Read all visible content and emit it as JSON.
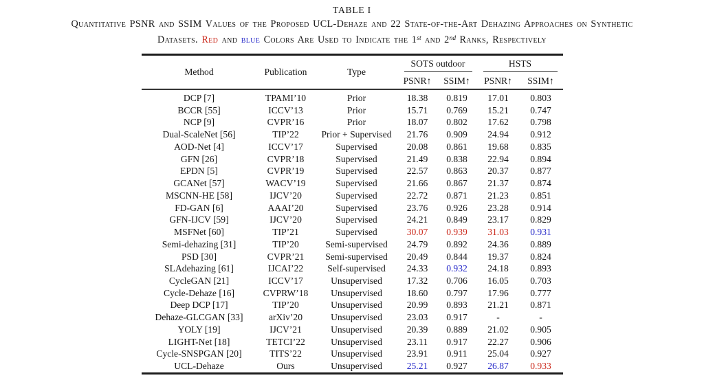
{
  "colors": {
    "rank1": "#cb2a1d",
    "rank2": "#2629c9",
    "text": "#161616",
    "background": "#ffffff"
  },
  "title": "TABLE I",
  "caption": {
    "line1": "Quantitative PSNR and SSIM Values of the Proposed UCL-Dehaze and 22 State-of-the-Art Dehazing Approaches on Synthetic",
    "line2_parts": {
      "pre": "Datasets. ",
      "red_word": "Red",
      "mid1": " and ",
      "blue_word": "blue",
      "mid2": " Colors Are Used to Indicate the 1",
      "sup1": "st",
      "mid3": " and 2",
      "sup2": "nd",
      "post": " Ranks, Respectively"
    }
  },
  "table": {
    "header": {
      "method": "Method",
      "publication": "Publication",
      "type": "Type",
      "group1": "SOTS outdoor",
      "group2": "HSTS",
      "sub": [
        "PSNR↑",
        "SSIM↑",
        "PSNR↑",
        "SSIM↑"
      ]
    },
    "rows": [
      {
        "method": "DCP [7]",
        "publication": "TPAMI’10",
        "type": "Prior",
        "values": [
          {
            "v": "18.38"
          },
          {
            "v": "0.819"
          },
          {
            "v": "17.01"
          },
          {
            "v": "0.803"
          }
        ]
      },
      {
        "method": "BCCR [55]",
        "publication": "ICCV’13",
        "type": "Prior",
        "values": [
          {
            "v": "15.71"
          },
          {
            "v": "0.769"
          },
          {
            "v": "15.21"
          },
          {
            "v": "0.747"
          }
        ]
      },
      {
        "method": "NCP [9]",
        "publication": "CVPR’16",
        "type": "Prior",
        "values": [
          {
            "v": "18.07"
          },
          {
            "v": "0.802"
          },
          {
            "v": "17.62"
          },
          {
            "v": "0.798"
          }
        ]
      },
      {
        "method": "Dual-ScaleNet [56]",
        "publication": "TIP’22",
        "type": "Prior + Supervised",
        "values": [
          {
            "v": "21.76"
          },
          {
            "v": "0.909"
          },
          {
            "v": "24.94"
          },
          {
            "v": "0.912"
          }
        ]
      },
      {
        "method": "AOD-Net [4]",
        "publication": "ICCV’17",
        "type": "Supervised",
        "values": [
          {
            "v": "20.08"
          },
          {
            "v": "0.861"
          },
          {
            "v": "19.68"
          },
          {
            "v": "0.835"
          }
        ]
      },
      {
        "method": "GFN [26]",
        "publication": "CVPR’18",
        "type": "Supervised",
        "values": [
          {
            "v": "21.49"
          },
          {
            "v": "0.838"
          },
          {
            "v": "22.94"
          },
          {
            "v": "0.894"
          }
        ]
      },
      {
        "method": "EPDN [5]",
        "publication": "CVPR’19",
        "type": "Supervised",
        "values": [
          {
            "v": "22.57"
          },
          {
            "v": "0.863"
          },
          {
            "v": "20.37"
          },
          {
            "v": "0.877"
          }
        ]
      },
      {
        "method": "GCANet [57]",
        "publication": "WACV’19",
        "type": "Supervised",
        "values": [
          {
            "v": "21.66"
          },
          {
            "v": "0.867"
          },
          {
            "v": "21.37"
          },
          {
            "v": "0.874"
          }
        ]
      },
      {
        "method": "MSCNN-HE [58]",
        "publication": "IJCV’20",
        "type": "Supervised",
        "values": [
          {
            "v": "22.72"
          },
          {
            "v": "0.871"
          },
          {
            "v": "21.23"
          },
          {
            "v": "0.851"
          }
        ]
      },
      {
        "method": "FD-GAN [6]",
        "publication": "AAAI’20",
        "type": "Supervised",
        "values": [
          {
            "v": "23.76"
          },
          {
            "v": "0.926"
          },
          {
            "v": "23.28"
          },
          {
            "v": "0.914"
          }
        ]
      },
      {
        "method": "GFN-IJCV [59]",
        "publication": "IJCV’20",
        "type": "Supervised",
        "values": [
          {
            "v": "24.21"
          },
          {
            "v": "0.849"
          },
          {
            "v": "23.17"
          },
          {
            "v": "0.829"
          }
        ]
      },
      {
        "method": "MSFNet [60]",
        "publication": "TIP’21",
        "type": "Supervised",
        "values": [
          {
            "v": "30.07",
            "c": "rank1"
          },
          {
            "v": "0.939",
            "c": "rank1"
          },
          {
            "v": "31.03",
            "c": "rank1"
          },
          {
            "v": "0.931",
            "c": "rank2"
          }
        ]
      },
      {
        "method": "Semi-dehazing [31]",
        "publication": "TIP’20",
        "type": "Semi-supervised",
        "values": [
          {
            "v": "24.79"
          },
          {
            "v": "0.892"
          },
          {
            "v": "24.36"
          },
          {
            "v": "0.889"
          }
        ]
      },
      {
        "method": "PSD [30]",
        "publication": "CVPR’21",
        "type": "Semi-supervised",
        "values": [
          {
            "v": "20.49"
          },
          {
            "v": "0.844"
          },
          {
            "v": "19.37"
          },
          {
            "v": "0.824"
          }
        ]
      },
      {
        "method": "SLAdehazing [61]",
        "publication": "IJCAI’22",
        "type": "Self-supervised",
        "values": [
          {
            "v": "24.33"
          },
          {
            "v": "0.932",
            "c": "rank2"
          },
          {
            "v": "24.18"
          },
          {
            "v": "0.893"
          }
        ]
      },
      {
        "method": "CycleGAN [21]",
        "publication": "ICCV’17",
        "type": "Unsupervised",
        "values": [
          {
            "v": "17.32"
          },
          {
            "v": "0.706"
          },
          {
            "v": "16.05"
          },
          {
            "v": "0.703"
          }
        ]
      },
      {
        "method": "Cycle-Dehaze [16]",
        "publication": "CVPRW’18",
        "type": "Unsupervised",
        "values": [
          {
            "v": "18.60"
          },
          {
            "v": "0.797"
          },
          {
            "v": "17.96"
          },
          {
            "v": "0.777"
          }
        ]
      },
      {
        "method": "Deep DCP [17]",
        "publication": "TIP’20",
        "type": "Unsupervised",
        "values": [
          {
            "v": "20.99"
          },
          {
            "v": "0.893"
          },
          {
            "v": "21.21"
          },
          {
            "v": "0.871"
          }
        ]
      },
      {
        "method": "Dehaze-GLCGAN [33]",
        "publication": "arXiv’20",
        "type": "Unsupervised",
        "values": [
          {
            "v": "23.03"
          },
          {
            "v": "0.917"
          },
          {
            "v": "-"
          },
          {
            "v": "-"
          }
        ]
      },
      {
        "method": "YOLY [19]",
        "publication": "IJCV’21",
        "type": "Unsupervised",
        "values": [
          {
            "v": "20.39"
          },
          {
            "v": "0.889"
          },
          {
            "v": "21.02"
          },
          {
            "v": "0.905"
          }
        ]
      },
      {
        "method": "LIGHT-Net [18]",
        "publication": "TETCI’22",
        "type": "Unsupervised",
        "values": [
          {
            "v": "23.11"
          },
          {
            "v": "0.917"
          },
          {
            "v": "22.27"
          },
          {
            "v": "0.906"
          }
        ]
      },
      {
        "method": "Cycle-SNSPGAN [20]",
        "publication": "TITS’22",
        "type": "Unsupervised",
        "values": [
          {
            "v": "23.91"
          },
          {
            "v": "0.911"
          },
          {
            "v": "25.04"
          },
          {
            "v": "0.927"
          }
        ]
      },
      {
        "method": "UCL-Dehaze",
        "publication": "Ours",
        "type": "Unsupervised",
        "values": [
          {
            "v": "25.21",
            "c": "rank2"
          },
          {
            "v": "0.927"
          },
          {
            "v": "26.87",
            "c": "rank2"
          },
          {
            "v": "0.933",
            "c": "rank1"
          }
        ]
      }
    ]
  }
}
